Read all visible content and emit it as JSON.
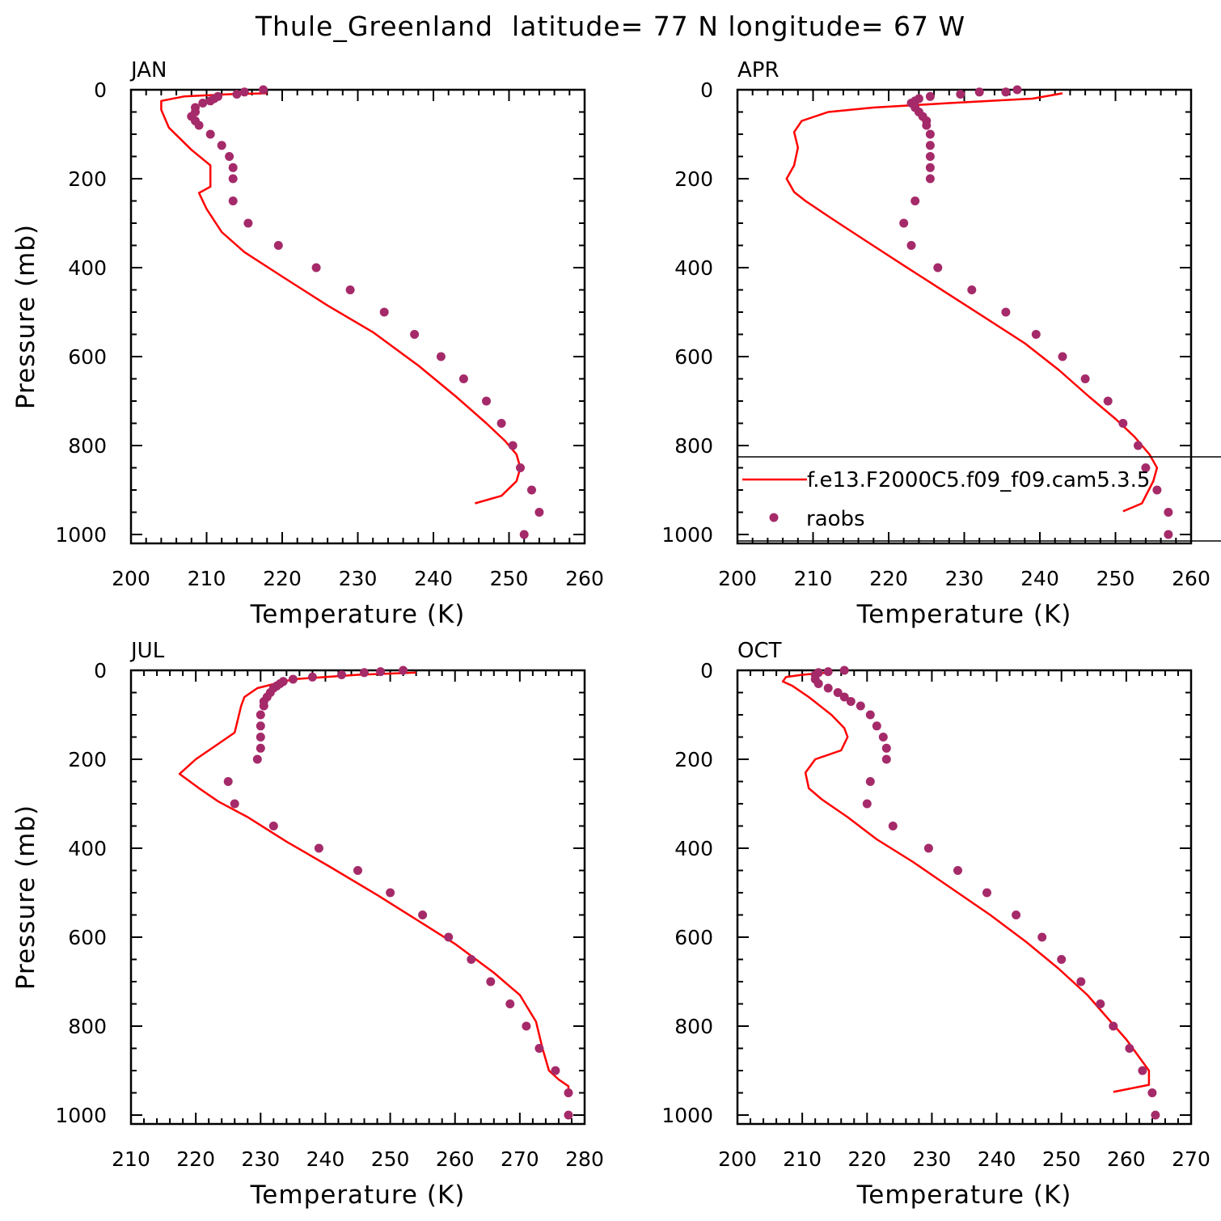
{
  "title": "Thule_Greenland  latitude= 77 N longitude= 67 W",
  "colors": {
    "model": "#ff0000",
    "obs": "#a52a6a",
    "axis": "#000000",
    "background": "#ffffff"
  },
  "legend": {
    "panel": "APR",
    "model_label": "f.e13.F2000C5.f09_f09.cam5.3.5",
    "obs_label": "raobs"
  },
  "chart_data": [
    {
      "type": "line",
      "title": "JAN",
      "xlabel": "Temperature (K)",
      "ylabel": "Pressure (mb)",
      "xlim": [
        200,
        260
      ],
      "ylim": [
        1020,
        0
      ],
      "x_ticks": [
        200,
        210,
        220,
        230,
        240,
        250,
        260
      ],
      "y_ticks": [
        0,
        200,
        400,
        600,
        800,
        1000
      ],
      "series": [
        {
          "name": "f.e13.F2000C5.f09_f09.cam5.3.5",
          "style": "line",
          "points": [
            [
              245.5,
              930
            ],
            [
              249,
              913
            ],
            [
              251,
              880
            ],
            [
              251.5,
              850
            ],
            [
              251,
              820
            ],
            [
              249.5,
              790
            ],
            [
              247,
              750
            ],
            [
              243,
              690
            ],
            [
              238,
              620
            ],
            [
              232,
              545
            ],
            [
              226,
              485
            ],
            [
              220,
              420
            ],
            [
              215,
              365
            ],
            [
              212,
              320
            ],
            [
              210,
              268
            ],
            [
              209,
              232
            ],
            [
              210.5,
              218
            ],
            [
              210.5,
              170
            ],
            [
              208,
              135
            ],
            [
              205,
              85
            ],
            [
              204,
              45
            ],
            [
              204,
              25
            ],
            [
              207,
              15
            ],
            [
              213,
              10
            ],
            [
              218,
              8
            ]
          ]
        },
        {
          "name": "raobs",
          "style": "scatter",
          "points": [
            [
              217.5,
              0
            ],
            [
              215,
              5
            ],
            [
              214,
              10
            ],
            [
              211.5,
              15
            ],
            [
              211,
              20
            ],
            [
              210.5,
              25
            ],
            [
              209.5,
              30
            ],
            [
              208.5,
              40
            ],
            [
              208.5,
              50
            ],
            [
              208,
              60
            ],
            [
              208.5,
              70
            ],
            [
              209,
              80
            ],
            [
              210.5,
              100
            ],
            [
              212,
              125
            ],
            [
              213,
              150
            ],
            [
              213.5,
              175
            ],
            [
              213.5,
              200
            ],
            [
              213.5,
              250
            ],
            [
              215.5,
              300
            ],
            [
              219.5,
              350
            ],
            [
              224.5,
              400
            ],
            [
              229,
              450
            ],
            [
              233.5,
              500
            ],
            [
              237.5,
              550
            ],
            [
              241,
              600
            ],
            [
              244,
              650
            ],
            [
              247,
              700
            ],
            [
              249,
              750
            ],
            [
              250.5,
              800
            ],
            [
              251.5,
              850
            ],
            [
              253,
              900
            ],
            [
              254,
              950
            ],
            [
              252,
              1000
            ]
          ]
        }
      ]
    },
    {
      "type": "line",
      "title": "APR",
      "xlabel": "Temperature (K)",
      "ylabel": "Pressure (mb)",
      "xlim": [
        200,
        260
      ],
      "ylim": [
        1020,
        0
      ],
      "x_ticks": [
        200,
        210,
        220,
        230,
        240,
        250,
        260
      ],
      "y_ticks": [
        0,
        200,
        400,
        600,
        800,
        1000
      ],
      "series": [
        {
          "name": "f.e13.F2000C5.f09_f09.cam5.3.5",
          "style": "line",
          "points": [
            [
              251,
              948
            ],
            [
              253.5,
              930
            ],
            [
              255,
              880
            ],
            [
              255.5,
              850
            ],
            [
              254.5,
              820
            ],
            [
              252.5,
              780
            ],
            [
              250,
              740
            ],
            [
              246.5,
              690
            ],
            [
              242.5,
              630
            ],
            [
              238,
              570
            ],
            [
              233,
              515
            ],
            [
              227.5,
              455
            ],
            [
              222,
              395
            ],
            [
              217,
              340
            ],
            [
              212.5,
              290
            ],
            [
              209,
              250
            ],
            [
              207.5,
              230
            ],
            [
              206.5,
              200
            ],
            [
              207.5,
              170
            ],
            [
              208,
              130
            ],
            [
              207.5,
              95
            ],
            [
              208.5,
              70
            ],
            [
              212,
              50
            ],
            [
              218,
              40
            ],
            [
              228,
              30
            ],
            [
              239,
              20
            ],
            [
              243,
              8
            ]
          ]
        },
        {
          "name": "raobs",
          "style": "scatter",
          "points": [
            [
              237,
              0
            ],
            [
              235.5,
              5
            ],
            [
              232,
              5
            ],
            [
              229.5,
              10
            ],
            [
              225.5,
              15
            ],
            [
              224,
              20
            ],
            [
              223.5,
              25
            ],
            [
              223,
              30
            ],
            [
              223.5,
              40
            ],
            [
              224,
              50
            ],
            [
              224.5,
              60
            ],
            [
              225,
              70
            ],
            [
              225,
              80
            ],
            [
              225.5,
              100
            ],
            [
              225.5,
              125
            ],
            [
              225.5,
              150
            ],
            [
              225.5,
              175
            ],
            [
              225.5,
              200
            ],
            [
              223.5,
              250
            ],
            [
              222,
              300
            ],
            [
              223,
              350
            ],
            [
              226.5,
              400
            ],
            [
              231,
              450
            ],
            [
              235.5,
              500
            ],
            [
              239.5,
              550
            ],
            [
              243,
              600
            ],
            [
              246,
              650
            ],
            [
              249,
              700
            ],
            [
              251,
              750
            ],
            [
              253,
              800
            ],
            [
              254,
              850
            ],
            [
              255.5,
              900
            ],
            [
              257,
              950
            ],
            [
              257,
              1000
            ]
          ]
        }
      ]
    },
    {
      "type": "line",
      "title": "JUL",
      "xlabel": "Temperature (K)",
      "ylabel": "Pressure (mb)",
      "xlim": [
        210,
        280
      ],
      "ylim": [
        1020,
        0
      ],
      "x_ticks": [
        210,
        220,
        230,
        240,
        250,
        260,
        270,
        280
      ],
      "y_ticks": [
        0,
        200,
        400,
        600,
        800,
        1000
      ],
      "series": [
        {
          "name": "f.e13.F2000C5.f09_f09.cam5.3.5",
          "style": "line",
          "points": [
            [
              277.5,
              950
            ],
            [
              277.5,
              935
            ],
            [
              276,
              920
            ],
            [
              274.5,
              900
            ],
            [
              273.5,
              850
            ],
            [
              272.5,
              790
            ],
            [
              270,
              730
            ],
            [
              266,
              680
            ],
            [
              260,
              615
            ],
            [
              254,
              560
            ],
            [
              248,
              505
            ],
            [
              240.5,
              440
            ],
            [
              234,
              385
            ],
            [
              228,
              330
            ],
            [
              223.5,
              295
            ],
            [
              220.5,
              265
            ],
            [
              217.5,
              233
            ],
            [
              220,
              200
            ],
            [
              223,
              170
            ],
            [
              226,
              140
            ],
            [
              227,
              80
            ],
            [
              227.5,
              60
            ],
            [
              229.5,
              40
            ],
            [
              235,
              20
            ],
            [
              245,
              10
            ],
            [
              254,
              5
            ]
          ]
        },
        {
          "name": "raobs",
          "style": "scatter",
          "points": [
            [
              252,
              0
            ],
            [
              248.5,
              3
            ],
            [
              246,
              5
            ],
            [
              242.5,
              10
            ],
            [
              238,
              15
            ],
            [
              235,
              20
            ],
            [
              233.5,
              25
            ],
            [
              233,
              30
            ],
            [
              232.5,
              35
            ],
            [
              232,
              40
            ],
            [
              231.5,
              50
            ],
            [
              231,
              60
            ],
            [
              230.5,
              70
            ],
            [
              230.5,
              80
            ],
            [
              230,
              100
            ],
            [
              230,
              125
            ],
            [
              230,
              150
            ],
            [
              230,
              175
            ],
            [
              229.5,
              200
            ],
            [
              225,
              250
            ],
            [
              226,
              300
            ],
            [
              232,
              350
            ],
            [
              239,
              400
            ],
            [
              245,
              450
            ],
            [
              250,
              500
            ],
            [
              255,
              550
            ],
            [
              259,
              600
            ],
            [
              262.5,
              650
            ],
            [
              265.5,
              700
            ],
            [
              268.5,
              750
            ],
            [
              271,
              800
            ],
            [
              273,
              850
            ],
            [
              275.5,
              900
            ],
            [
              277.5,
              950
            ],
            [
              277.5,
              1000
            ]
          ]
        }
      ]
    },
    {
      "type": "line",
      "title": "OCT",
      "xlabel": "Temperature (K)",
      "ylabel": "Pressure (mb)",
      "xlim": [
        200,
        270
      ],
      "ylim": [
        1020,
        0
      ],
      "x_ticks": [
        200,
        210,
        220,
        230,
        240,
        250,
        260,
        270
      ],
      "y_ticks": [
        0,
        200,
        400,
        600,
        800,
        1000
      ],
      "series": [
        {
          "name": "f.e13.F2000C5.f09_f09.cam5.3.5",
          "style": "line",
          "points": [
            [
              258,
              948
            ],
            [
              263.5,
              932
            ],
            [
              263.5,
              900
            ],
            [
              262,
              870
            ],
            [
              260,
              830
            ],
            [
              257,
              780
            ],
            [
              254,
              730
            ],
            [
              249.5,
              670
            ],
            [
              244.5,
              610
            ],
            [
              239,
              550
            ],
            [
              233,
              490
            ],
            [
              227,
              430
            ],
            [
              221.5,
              380
            ],
            [
              217,
              330
            ],
            [
              213,
              290
            ],
            [
              211,
              265
            ],
            [
              210.5,
              230
            ],
            [
              212,
              200
            ],
            [
              216,
              180
            ],
            [
              217,
              150
            ],
            [
              216.5,
              130
            ],
            [
              214.5,
              100
            ],
            [
              211,
              60
            ],
            [
              208.5,
              35
            ],
            [
              207,
              25
            ],
            [
              207.5,
              15
            ],
            [
              210,
              10
            ],
            [
              214,
              5
            ]
          ]
        },
        {
          "name": "raobs",
          "style": "scatter",
          "points": [
            [
              216.5,
              0
            ],
            [
              214,
              3
            ],
            [
              212.5,
              5
            ],
            [
              212,
              10
            ],
            [
              212,
              20
            ],
            [
              212.5,
              30
            ],
            [
              214,
              40
            ],
            [
              215.5,
              50
            ],
            [
              216.5,
              60
            ],
            [
              217.5,
              70
            ],
            [
              219,
              80
            ],
            [
              220.5,
              100
            ],
            [
              221.5,
              125
            ],
            [
              222.5,
              150
            ],
            [
              223,
              175
            ],
            [
              223,
              200
            ],
            [
              220.5,
              250
            ],
            [
              220,
              300
            ],
            [
              224,
              350
            ],
            [
              229.5,
              400
            ],
            [
              234,
              450
            ],
            [
              238.5,
              500
            ],
            [
              243,
              550
            ],
            [
              247,
              600
            ],
            [
              250,
              650
            ],
            [
              253,
              700
            ],
            [
              256,
              750
            ],
            [
              258,
              800
            ],
            [
              260.5,
              850
            ],
            [
              262.5,
              900
            ],
            [
              264,
              950
            ],
            [
              264.5,
              1000
            ]
          ]
        }
      ]
    }
  ]
}
